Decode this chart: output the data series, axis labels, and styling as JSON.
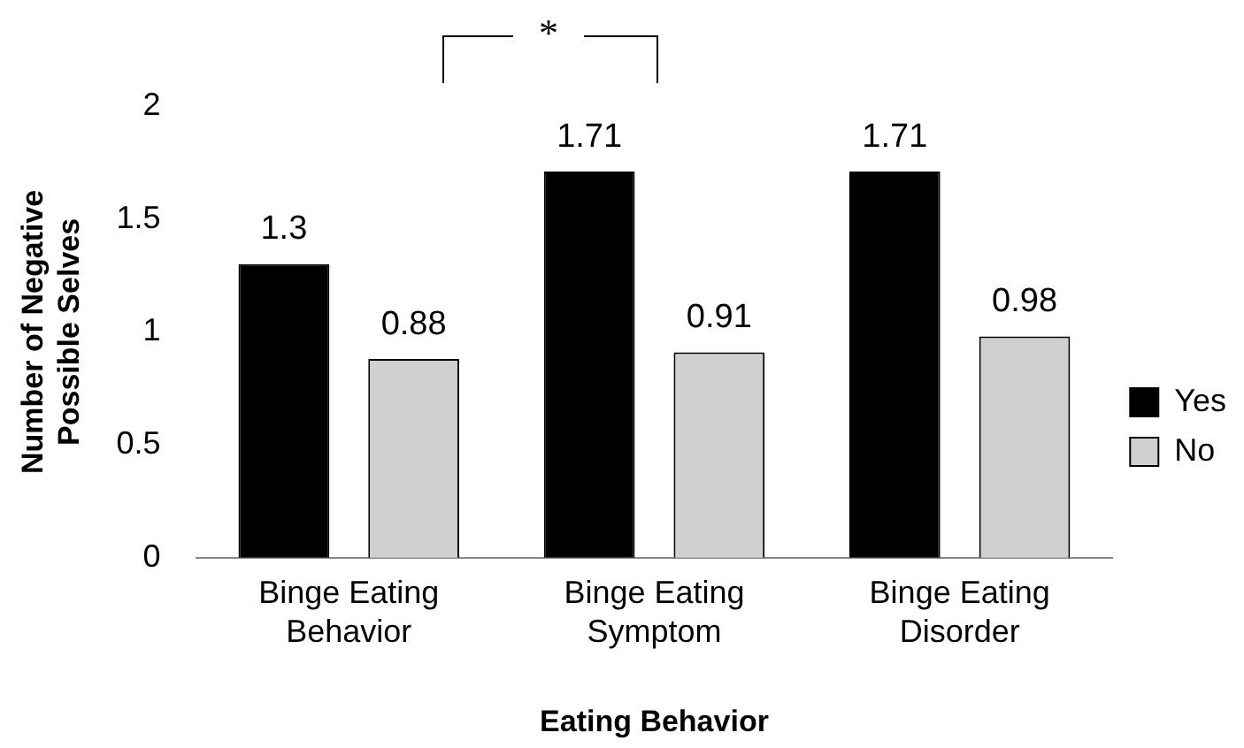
{
  "chart_data": {
    "type": "bar",
    "categories": [
      "Binge Eating Behavior",
      "Binge Eating Symptom",
      "Binge Eating Disorder"
    ],
    "series": [
      {
        "name": "Yes",
        "color": "#000000",
        "values": [
          1.3,
          1.71,
          1.71
        ]
      },
      {
        "name": "No",
        "color": "#d0d0d0",
        "values": [
          0.88,
          0.91,
          0.98
        ]
      }
    ],
    "xlabel": "Eating Behavior",
    "ylabel": "Number of Negative Possible Selves",
    "ylim": [
      0,
      2
    ],
    "yticks": [
      0,
      0.5,
      1,
      1.5,
      2
    ],
    "grid": false,
    "legend": "right",
    "data_labels": true,
    "annotations": [
      "*"
    ]
  }
}
